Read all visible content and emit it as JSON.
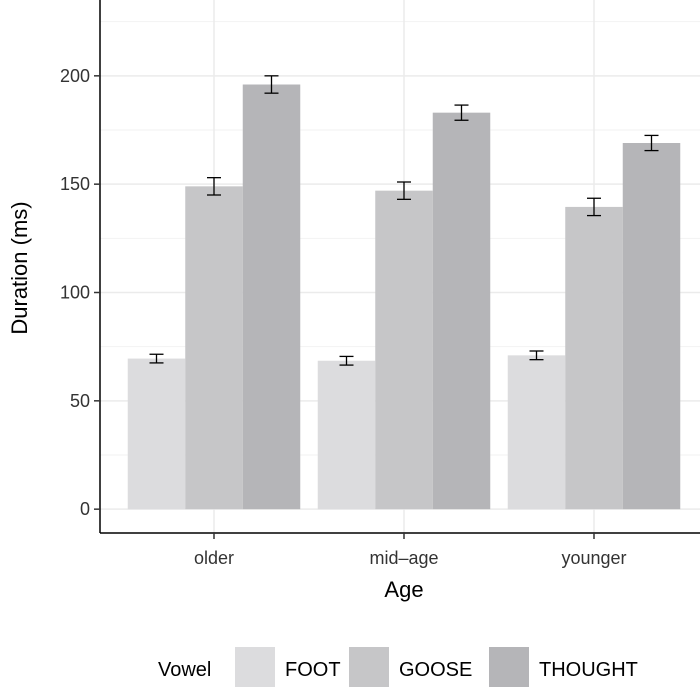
{
  "chart_data": {
    "type": "bar",
    "title": "",
    "xlabel": "Age",
    "ylabel": "Duration (ms)",
    "categories": [
      "older",
      "mid–age",
      "younger"
    ],
    "yticks": [
      0,
      50,
      100,
      150,
      200
    ],
    "ylim": [
      -11,
      235
    ],
    "grid": true,
    "legend_title": "Vowel",
    "legend_position": "bottom",
    "series": [
      {
        "name": "FOOT",
        "color": "#dcdcde",
        "values": [
          69.5,
          68.5,
          71
        ],
        "error": [
          2,
          2,
          2
        ]
      },
      {
        "name": "GOOSE",
        "color": "#c6c6c8",
        "values": [
          149,
          147,
          139.5
        ],
        "error": [
          4,
          4,
          4
        ]
      },
      {
        "name": "THOUGHT",
        "color": "#b5b5b8",
        "values": [
          196,
          183,
          169
        ],
        "error": [
          4,
          3.5,
          3.5
        ]
      }
    ]
  }
}
